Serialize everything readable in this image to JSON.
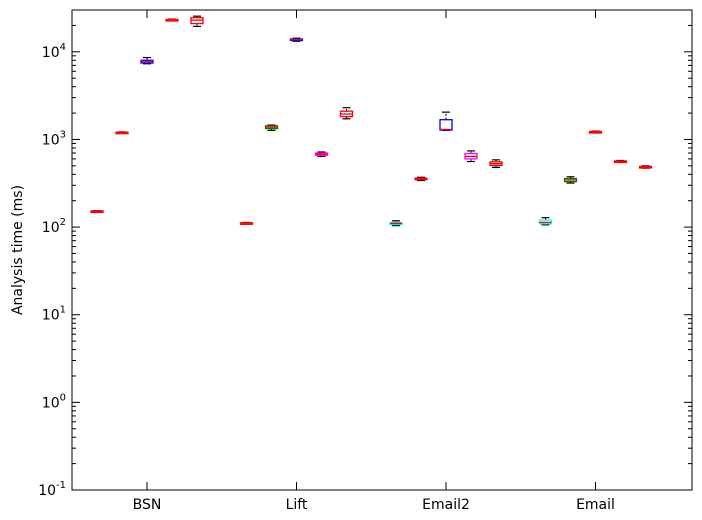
{
  "chart_data": {
    "type": "box",
    "title": "",
    "xlabel": "",
    "ylabel": "Analysis time (ms)",
    "yscale": "log",
    "ylim": [
      0.1,
      30000
    ],
    "y_ticks": [
      {
        "value": 0.1,
        "base": "10",
        "exp": "-1"
      },
      {
        "value": 1,
        "base": "10",
        "exp": "0"
      },
      {
        "value": 10,
        "base": "10",
        "exp": "1"
      },
      {
        "value": 100,
        "base": "10",
        "exp": "2"
      },
      {
        "value": 1000,
        "base": "10",
        "exp": "3"
      },
      {
        "value": 10000,
        "base": "10",
        "exp": "4"
      }
    ],
    "grid": false,
    "categories": [
      "BSN",
      "Lift",
      "Email2",
      "Email"
    ],
    "groups": [
      {
        "category": "BSN",
        "boxes": [
          {
            "color": "#ff0000",
            "min": 148,
            "q1": 150,
            "median": 151,
            "q3": 153,
            "max": 154
          },
          {
            "color": "#ff0000",
            "min": 1180,
            "q1": 1195,
            "median": 1200,
            "q3": 1210,
            "max": 1220
          },
          {
            "color": "#0000ff",
            "min": 7300,
            "q1": 7450,
            "median": 7700,
            "q3": 8000,
            "max": 8600
          },
          {
            "color": "#ff0000",
            "min": 22800,
            "q1": 23000,
            "median": 23200,
            "q3": 23400,
            "max": 23600
          },
          {
            "color": "#ff0000",
            "min": 19500,
            "q1": 21000,
            "median": 23000,
            "q3": 24500,
            "max": 25500
          }
        ]
      },
      {
        "category": "Lift",
        "boxes": [
          {
            "color": "#ff0000",
            "min": 108,
            "q1": 110,
            "median": 111,
            "q3": 112,
            "max": 113
          },
          {
            "color": "#008000",
            "min": 1270,
            "q1": 1330,
            "median": 1380,
            "q3": 1430,
            "max": 1460
          },
          {
            "color": "#0000ff",
            "min": 13200,
            "q1": 13500,
            "median": 13800,
            "q3": 14000,
            "max": 14300
          },
          {
            "color": "#ff00ff",
            "min": 640,
            "q1": 660,
            "median": 680,
            "q3": 700,
            "max": 720
          },
          {
            "color": "#ff0000",
            "min": 1720,
            "q1": 1820,
            "median": 1950,
            "q3": 2100,
            "max": 2300
          }
        ]
      },
      {
        "category": "Email2",
        "boxes": [
          {
            "color": "#00ffff",
            "min": 104,
            "q1": 107,
            "median": 110,
            "q3": 113,
            "max": 118
          },
          {
            "color": "#ff0000",
            "min": 340,
            "q1": 348,
            "median": 355,
            "q3": 362,
            "max": 370
          },
          {
            "color": "#0000ff",
            "min": 1270,
            "q1": 1280,
            "median": 1300,
            "q3": 1680,
            "max": 2050
          },
          {
            "color": "#ff00ff",
            "min": 560,
            "q1": 600,
            "median": 640,
            "q3": 690,
            "max": 740
          },
          {
            "color": "#ff0000",
            "min": 480,
            "q1": 505,
            "median": 530,
            "q3": 555,
            "max": 585
          }
        ]
      },
      {
        "category": "Email",
        "boxes": [
          {
            "color": "#00ffff",
            "min": 106,
            "q1": 109,
            "median": 113,
            "q3": 120,
            "max": 128
          },
          {
            "color": "#008000",
            "min": 318,
            "q1": 330,
            "median": 345,
            "q3": 358,
            "max": 375
          },
          {
            "color": "#ff0000",
            "min": 1200,
            "q1": 1210,
            "median": 1220,
            "q3": 1232,
            "max": 1245
          },
          {
            "color": "#ff0000",
            "min": 548,
            "q1": 556,
            "median": 562,
            "q3": 568,
            "max": 575
          },
          {
            "color": "#ff0000",
            "min": 470,
            "q1": 478,
            "median": 485,
            "q3": 492,
            "max": 500
          }
        ]
      }
    ]
  }
}
